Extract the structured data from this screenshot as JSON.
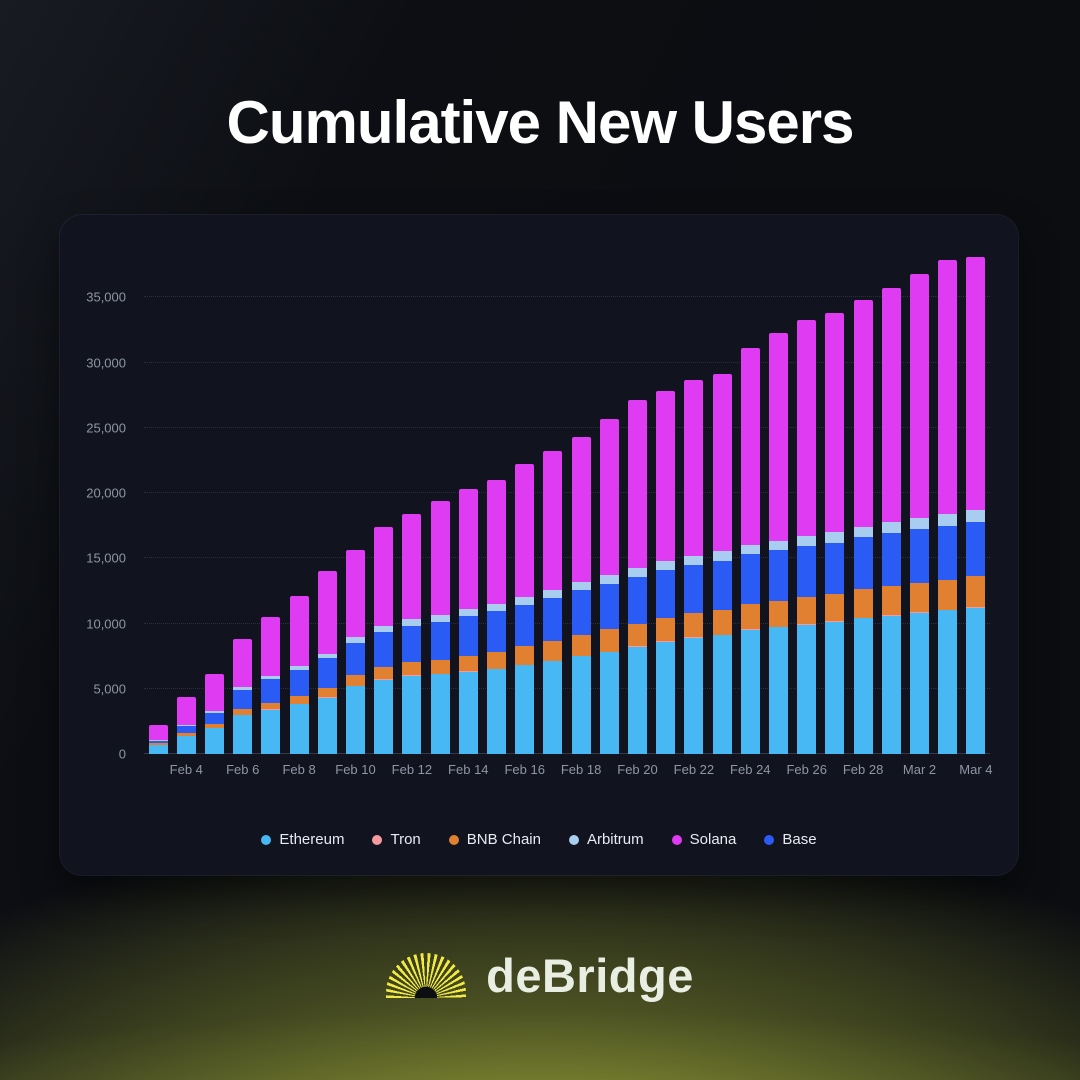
{
  "page": {
    "title": "Cumulative New Users"
  },
  "footer": {
    "brand": "deBridge",
    "accent_color": "#F2EA43"
  },
  "theme": {
    "background": "#0b0d11",
    "card_background": "#11141e",
    "grid_color": "#2a2f3d",
    "axis_label_color": "#8e95a5",
    "title_color": "#ffffff",
    "glow_color": "#e1f04b"
  },
  "chart_data": {
    "type": "bar",
    "stacked": true,
    "title": "Cumulative New Users",
    "xlabel": "",
    "ylabel": "",
    "grid": "horizontal-dotted",
    "legend_position": "bottom",
    "y_axis": {
      "max": 38400,
      "ticks": [
        0,
        5000,
        10000,
        15000,
        20000,
        25000,
        30000,
        35000
      ],
      "tick_labels": [
        "0",
        "5,000",
        "10,000",
        "15,000",
        "20,000",
        "25,000",
        "30,000",
        "35,000"
      ]
    },
    "categories": [
      "Feb 3",
      "Feb 4",
      "Feb 5",
      "Feb 6",
      "Feb 7",
      "Feb 8",
      "Feb 9",
      "Feb 10",
      "Feb 11",
      "Feb 12",
      "Feb 13",
      "Feb 14",
      "Feb 15",
      "Feb 16",
      "Feb 17",
      "Feb 18",
      "Feb 19",
      "Feb 20",
      "Feb 21",
      "Feb 22",
      "Feb 23",
      "Feb 24",
      "Feb 25",
      "Feb 26",
      "Feb 27",
      "Feb 28",
      "Mar 1",
      "Mar 2",
      "Mar 3",
      "Mar 4"
    ],
    "x_tick_labels": [
      "Feb 4",
      "Feb 6",
      "Feb 8",
      "Feb 10",
      "Feb 12",
      "Feb 14",
      "Feb 16",
      "Feb 18",
      "Feb 20",
      "Feb 22",
      "Feb 24",
      "Feb 26",
      "Feb 28",
      "Mar 2",
      "Mar 4"
    ],
    "series": [
      {
        "name": "Ethereum",
        "color": "#47b8f3",
        "values": [
          700,
          1400,
          2000,
          3000,
          3400,
          3800,
          4300,
          5200,
          5700,
          6000,
          6100,
          6300,
          6500,
          6800,
          7100,
          7500,
          7800,
          8200,
          8600,
          8900,
          9100,
          9500,
          9700,
          9900,
          10100,
          10400,
          10600,
          10800,
          11000,
          11200
        ]
      },
      {
        "name": "Tron",
        "color": "#f69a9f",
        "values": [
          10,
          15,
          20,
          25,
          30,
          30,
          35,
          35,
          40,
          40,
          40,
          45,
          45,
          45,
          50,
          50,
          50,
          50,
          55,
          55,
          55,
          55,
          55,
          60,
          60,
          60,
          60,
          60,
          60,
          60
        ]
      },
      {
        "name": "BNB Chain",
        "color": "#e08030",
        "values": [
          100,
          200,
          300,
          400,
          500,
          600,
          700,
          800,
          900,
          1000,
          1100,
          1200,
          1300,
          1400,
          1500,
          1600,
          1700,
          1750,
          1800,
          1850,
          1900,
          1950,
          2000,
          2050,
          2100,
          2150,
          2200,
          2250,
          2300,
          2350
        ]
      },
      {
        "name": "Base",
        "color": "#2a5cf5",
        "values": [
          200,
          500,
          800,
          1500,
          1800,
          2000,
          2300,
          2500,
          2700,
          2800,
          2900,
          3000,
          3100,
          3200,
          3300,
          3400,
          3500,
          3600,
          3650,
          3700,
          3750,
          3800,
          3850,
          3900,
          3950,
          4000,
          4050,
          4100,
          4150,
          4200
        ]
      },
      {
        "name": "Arbitrum",
        "color": "#a9cdf0",
        "values": [
          50,
          100,
          150,
          200,
          250,
          300,
          350,
          400,
          450,
          500,
          520,
          540,
          560,
          580,
          600,
          620,
          640,
          660,
          680,
          700,
          720,
          740,
          760,
          780,
          800,
          820,
          840,
          860,
          880,
          900
        ]
      },
      {
        "name": "Solana",
        "color": "#df3bf2",
        "values": [
          1140,
          2185,
          2830,
          3675,
          4520,
          5370,
          6315,
          6665,
          7610,
          8060,
          8740,
          9215,
          9495,
          10175,
          10650,
          11130,
          12010,
          12840,
          13015,
          13495,
          13575,
          15055,
          15935,
          16610,
          16790,
          17370,
          17950,
          18730,
          19510,
          19390
        ]
      }
    ],
    "legend": [
      {
        "label": "Ethereum",
        "color": "#47b8f3"
      },
      {
        "label": "Tron",
        "color": "#f69a9f"
      },
      {
        "label": "BNB Chain",
        "color": "#e08030"
      },
      {
        "label": "Arbitrum",
        "color": "#a9cdf0"
      },
      {
        "label": "Solana",
        "color": "#df3bf2"
      },
      {
        "label": "Base",
        "color": "#2a5cf5"
      }
    ]
  }
}
